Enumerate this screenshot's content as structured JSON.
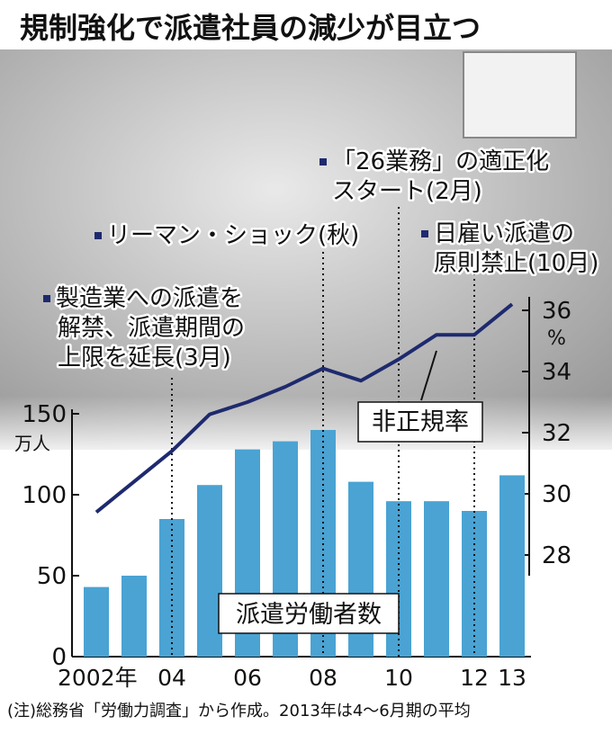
{
  "header": {
    "title": "規制強化で派遣社員の減少が目立つ"
  },
  "note": "(注)総務省「労働力調査」から作成。2013年は4〜6月期の平均",
  "events": [
    {
      "lines": [
        "製造業への派遣を",
        "解禁、派遣期間の",
        "上限を延長(3月)"
      ],
      "year": 2004
    },
    {
      "lines": [
        "リーマン・ショック(秋)"
      ],
      "year": 2008
    },
    {
      "lines": [
        "「26業務」の適正化",
        "スタート(2月)"
      ],
      "year": 2010
    },
    {
      "lines": [
        "日雇い派遣の",
        "原則禁止(10月)"
      ],
      "year": 2012
    }
  ],
  "colors": {
    "bar": "#4aa3d3",
    "line": "#1e2a6e",
    "text": "#111111",
    "background_photo": "#cfcfcf"
  },
  "chart_data": {
    "type": "bar+line",
    "x": [
      2002,
      2003,
      2004,
      2005,
      2006,
      2007,
      2008,
      2009,
      2010,
      2011,
      2012,
      2013
    ],
    "x_tick_labels": [
      {
        "x": 2002,
        "label": "2002年"
      },
      {
        "x": 2004,
        "label": "04"
      },
      {
        "x": 2006,
        "label": "06"
      },
      {
        "x": 2008,
        "label": "08"
      },
      {
        "x": 2010,
        "label": "10"
      },
      {
        "x": 2012,
        "label": "12"
      },
      {
        "x": 2013,
        "label": "13"
      }
    ],
    "bars": {
      "name": "派遣労働者数",
      "values": [
        43,
        50,
        85,
        106,
        128,
        133,
        140,
        108,
        96,
        96,
        90,
        112
      ],
      "ylim": [
        0,
        150
      ],
      "yticks": [
        0,
        50,
        100,
        150
      ],
      "unit": "万人"
    },
    "line": {
      "name": "非正規率",
      "values": [
        29.4,
        30.4,
        31.4,
        32.6,
        33.0,
        33.5,
        34.1,
        33.7,
        34.4,
        35.2,
        35.2,
        36.2
      ],
      "ylim": [
        26,
        37
      ],
      "yticks": [
        28,
        30,
        32,
        34,
        36
      ],
      "unit": "%"
    },
    "grid": false
  }
}
